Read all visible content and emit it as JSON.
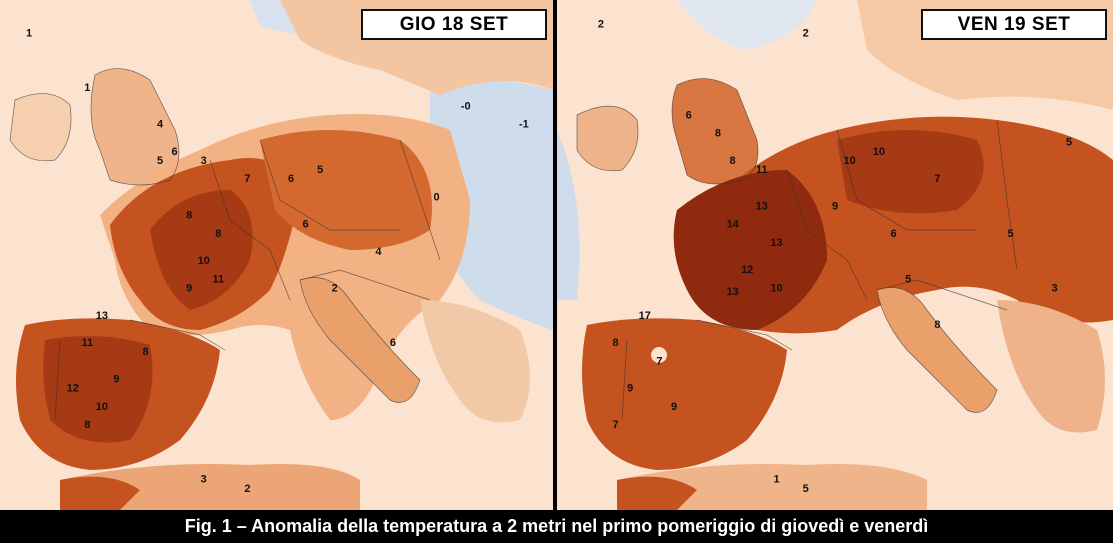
{
  "panels": [
    {
      "date_label": "GIO 18 SET",
      "anomaly_labels": [
        {
          "value": "1",
          "lon": -9,
          "lat": 58
        },
        {
          "value": "1",
          "lon": -5,
          "lat": 55
        },
        {
          "value": "4",
          "lon": 0,
          "lat": 53
        },
        {
          "value": "6",
          "lon": 1,
          "lat": 51.5
        },
        {
          "value": "5",
          "lon": 0,
          "lat": 51
        },
        {
          "value": "3",
          "lon": 3,
          "lat": 51
        },
        {
          "value": "7",
          "lon": 6,
          "lat": 50
        },
        {
          "value": "6",
          "lon": 9,
          "lat": 50
        },
        {
          "value": "5",
          "lon": 11,
          "lat": 50.5
        },
        {
          "value": "8",
          "lon": 2,
          "lat": 48
        },
        {
          "value": "8",
          "lon": 4,
          "lat": 47
        },
        {
          "value": "10",
          "lon": 3,
          "lat": 45.5
        },
        {
          "value": "11",
          "lon": 4,
          "lat": 44.5
        },
        {
          "value": "9",
          "lon": 2,
          "lat": 44
        },
        {
          "value": "13",
          "lon": -4,
          "lat": 42.5
        },
        {
          "value": "11",
          "lon": -5,
          "lat": 41
        },
        {
          "value": "8",
          "lon": -1,
          "lat": 40.5
        },
        {
          "value": "9",
          "lon": -3,
          "lat": 39
        },
        {
          "value": "12",
          "lon": -6,
          "lat": 38.5
        },
        {
          "value": "10",
          "lon": -4,
          "lat": 37.5
        },
        {
          "value": "8",
          "lon": -5,
          "lat": 36.5
        },
        {
          "value": "6",
          "lon": 10,
          "lat": 47.5
        },
        {
          "value": "4",
          "lon": 15,
          "lat": 46
        },
        {
          "value": "2",
          "lon": 12,
          "lat": 44
        },
        {
          "value": "6",
          "lon": 16,
          "lat": 41
        },
        {
          "value": "0",
          "lon": 19,
          "lat": 49
        },
        {
          "value": "-0",
          "lon": 21,
          "lat": 54
        },
        {
          "value": "-1",
          "lon": 25,
          "lat": 53
        },
        {
          "value": "2",
          "lon": 6,
          "lat": 33
        },
        {
          "value": "3",
          "lon": 3,
          "lat": 33.5
        }
      ]
    },
    {
      "date_label": "VEN 19 SET",
      "anomaly_labels": [
        {
          "value": "2",
          "lon": -8,
          "lat": 58.5
        },
        {
          "value": "2",
          "lon": 6,
          "lat": 58
        },
        {
          "value": "6",
          "lon": -2,
          "lat": 53.5
        },
        {
          "value": "8",
          "lon": 0,
          "lat": 52.5
        },
        {
          "value": "8",
          "lon": 1,
          "lat": 51
        },
        {
          "value": "11",
          "lon": 3,
          "lat": 50.5
        },
        {
          "value": "10",
          "lon": 9,
          "lat": 51
        },
        {
          "value": "10",
          "lon": 11,
          "lat": 51.5
        },
        {
          "value": "7",
          "lon": 15,
          "lat": 50
        },
        {
          "value": "14",
          "lon": 1,
          "lat": 47.5
        },
        {
          "value": "13",
          "lon": 3,
          "lat": 48.5
        },
        {
          "value": "13",
          "lon": 4,
          "lat": 46.5
        },
        {
          "value": "12",
          "lon": 2,
          "lat": 45
        },
        {
          "value": "10",
          "lon": 4,
          "lat": 44
        },
        {
          "value": "13",
          "lon": 1,
          "lat": 43.8
        },
        {
          "value": "17",
          "lon": -5,
          "lat": 42.5
        },
        {
          "value": "8",
          "lon": -7,
          "lat": 41
        },
        {
          "value": "7",
          "lon": -4,
          "lat": 40
        },
        {
          "value": "9",
          "lon": -6,
          "lat": 38.5
        },
        {
          "value": "9",
          "lon": -3,
          "lat": 37.5
        },
        {
          "value": "7",
          "lon": -7,
          "lat": 36.5
        },
        {
          "value": "9",
          "lon": 8,
          "lat": 48.5
        },
        {
          "value": "6",
          "lon": 12,
          "lat": 47
        },
        {
          "value": "5",
          "lon": 13,
          "lat": 44.5
        },
        {
          "value": "8",
          "lon": 15,
          "lat": 42
        },
        {
          "value": "5",
          "lon": 20,
          "lat": 47
        },
        {
          "value": "5",
          "lon": 24,
          "lat": 52
        },
        {
          "value": "3",
          "lon": 23,
          "lat": 44
        },
        {
          "value": "5",
          "lon": 6,
          "lat": 33
        },
        {
          "value": "1",
          "lon": 4,
          "lat": 33.5
        }
      ]
    }
  ],
  "caption": "Fig. 1 – Anomalia della temperatura a 2 metri nel primo pomeriggio di giovedì e venerdì",
  "colors": {
    "sea_warm_light": "#fbe3cf",
    "land_light": "#f6bf94",
    "warm_mid": "#e58a4f",
    "warm_strong": "#c4531f",
    "warm_deep": "#8f2a0e",
    "cool": "#c9d9ee",
    "caption_bg": "#000000",
    "caption_text": "#ffffff"
  }
}
